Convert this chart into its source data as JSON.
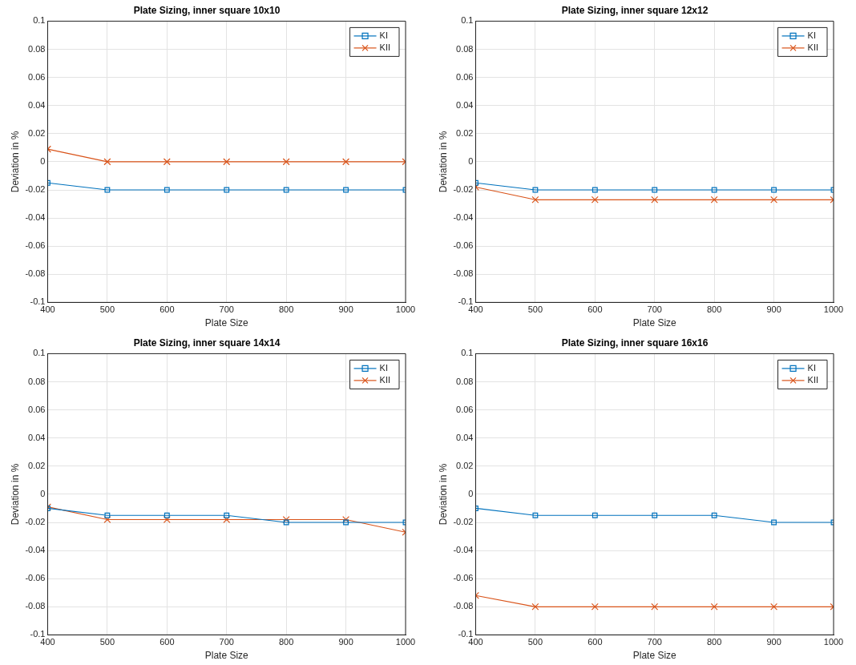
{
  "chart_data": [
    {
      "type": "line",
      "title": "Plate Sizing, inner square 10x10",
      "xlabel": "Plate Size",
      "ylabel": "Deviation in %",
      "x": [
        400,
        500,
        600,
        700,
        800,
        900,
        1000
      ],
      "series": [
        {
          "name": "KI",
          "color": "#0072bd",
          "marker": "square",
          "values": [
            -0.015,
            -0.02,
            -0.02,
            -0.02,
            -0.02,
            -0.02,
            -0.02
          ]
        },
        {
          "name": "KII",
          "color": "#d95319",
          "marker": "cross",
          "values": [
            0.009,
            0,
            0,
            0,
            0,
            0,
            0
          ]
        }
      ],
      "xlim": [
        400,
        1000
      ],
      "xticks": [
        400,
        500,
        600,
        700,
        800,
        900,
        1000
      ],
      "ylim": [
        -0.1,
        0.1
      ],
      "yticks": [
        -0.1,
        -0.08,
        -0.06,
        -0.04,
        -0.02,
        0,
        0.02,
        0.04,
        0.06,
        0.08,
        0.1
      ],
      "grid": true,
      "legend": "top right"
    },
    {
      "type": "line",
      "title": "Plate Sizing, inner square 12x12",
      "xlabel": "Plate Size",
      "ylabel": "Deviation in %",
      "x": [
        400,
        500,
        600,
        700,
        800,
        900,
        1000
      ],
      "series": [
        {
          "name": "KI",
          "color": "#0072bd",
          "marker": "square",
          "values": [
            -0.015,
            -0.02,
            -0.02,
            -0.02,
            -0.02,
            -0.02,
            -0.02
          ]
        },
        {
          "name": "KII",
          "color": "#d95319",
          "marker": "cross",
          "values": [
            -0.018,
            -0.027,
            -0.027,
            -0.027,
            -0.027,
            -0.027,
            -0.027
          ]
        }
      ],
      "xlim": [
        400,
        1000
      ],
      "xticks": [
        400,
        500,
        600,
        700,
        800,
        900,
        1000
      ],
      "ylim": [
        -0.1,
        0.1
      ],
      "yticks": [
        -0.1,
        -0.08,
        -0.06,
        -0.04,
        -0.02,
        0,
        0.02,
        0.04,
        0.06,
        0.08,
        0.1
      ],
      "grid": true,
      "legend": "top right"
    },
    {
      "type": "line",
      "title": "Plate Sizing, inner square 14x14",
      "xlabel": "Plate Size",
      "ylabel": "Deviation in %",
      "x": [
        400,
        500,
        600,
        700,
        800,
        900,
        1000
      ],
      "series": [
        {
          "name": "KI",
          "color": "#0072bd",
          "marker": "square",
          "values": [
            -0.01,
            -0.015,
            -0.015,
            -0.015,
            -0.02,
            -0.02,
            -0.02
          ]
        },
        {
          "name": "KII",
          "color": "#d95319",
          "marker": "cross",
          "values": [
            -0.009,
            -0.018,
            -0.018,
            -0.018,
            -0.018,
            -0.018,
            -0.027
          ]
        }
      ],
      "xlim": [
        400,
        1000
      ],
      "xticks": [
        400,
        500,
        600,
        700,
        800,
        900,
        1000
      ],
      "ylim": [
        -0.1,
        0.1
      ],
      "yticks": [
        -0.1,
        -0.08,
        -0.06,
        -0.04,
        -0.02,
        0,
        0.02,
        0.04,
        0.06,
        0.08,
        0.1
      ],
      "grid": true,
      "legend": "top right"
    },
    {
      "type": "line",
      "title": "Plate Sizing, inner square 16x16",
      "xlabel": "Plate Size",
      "ylabel": "Deviation in %",
      "x": [
        400,
        500,
        600,
        700,
        800,
        900,
        1000
      ],
      "series": [
        {
          "name": "KI",
          "color": "#0072bd",
          "marker": "square",
          "values": [
            -0.01,
            -0.015,
            -0.015,
            -0.015,
            -0.015,
            -0.02,
            -0.02
          ]
        },
        {
          "name": "KII",
          "color": "#d95319",
          "marker": "cross",
          "values": [
            -0.072,
            -0.08,
            -0.08,
            -0.08,
            -0.08,
            -0.08,
            -0.08
          ]
        }
      ],
      "xlim": [
        400,
        1000
      ],
      "xticks": [
        400,
        500,
        600,
        700,
        800,
        900,
        1000
      ],
      "ylim": [
        -0.1,
        0.1
      ],
      "yticks": [
        -0.1,
        -0.08,
        -0.06,
        -0.04,
        -0.02,
        0,
        0.02,
        0.04,
        0.06,
        0.08,
        0.1
      ],
      "grid": true,
      "legend": "top right"
    }
  ]
}
